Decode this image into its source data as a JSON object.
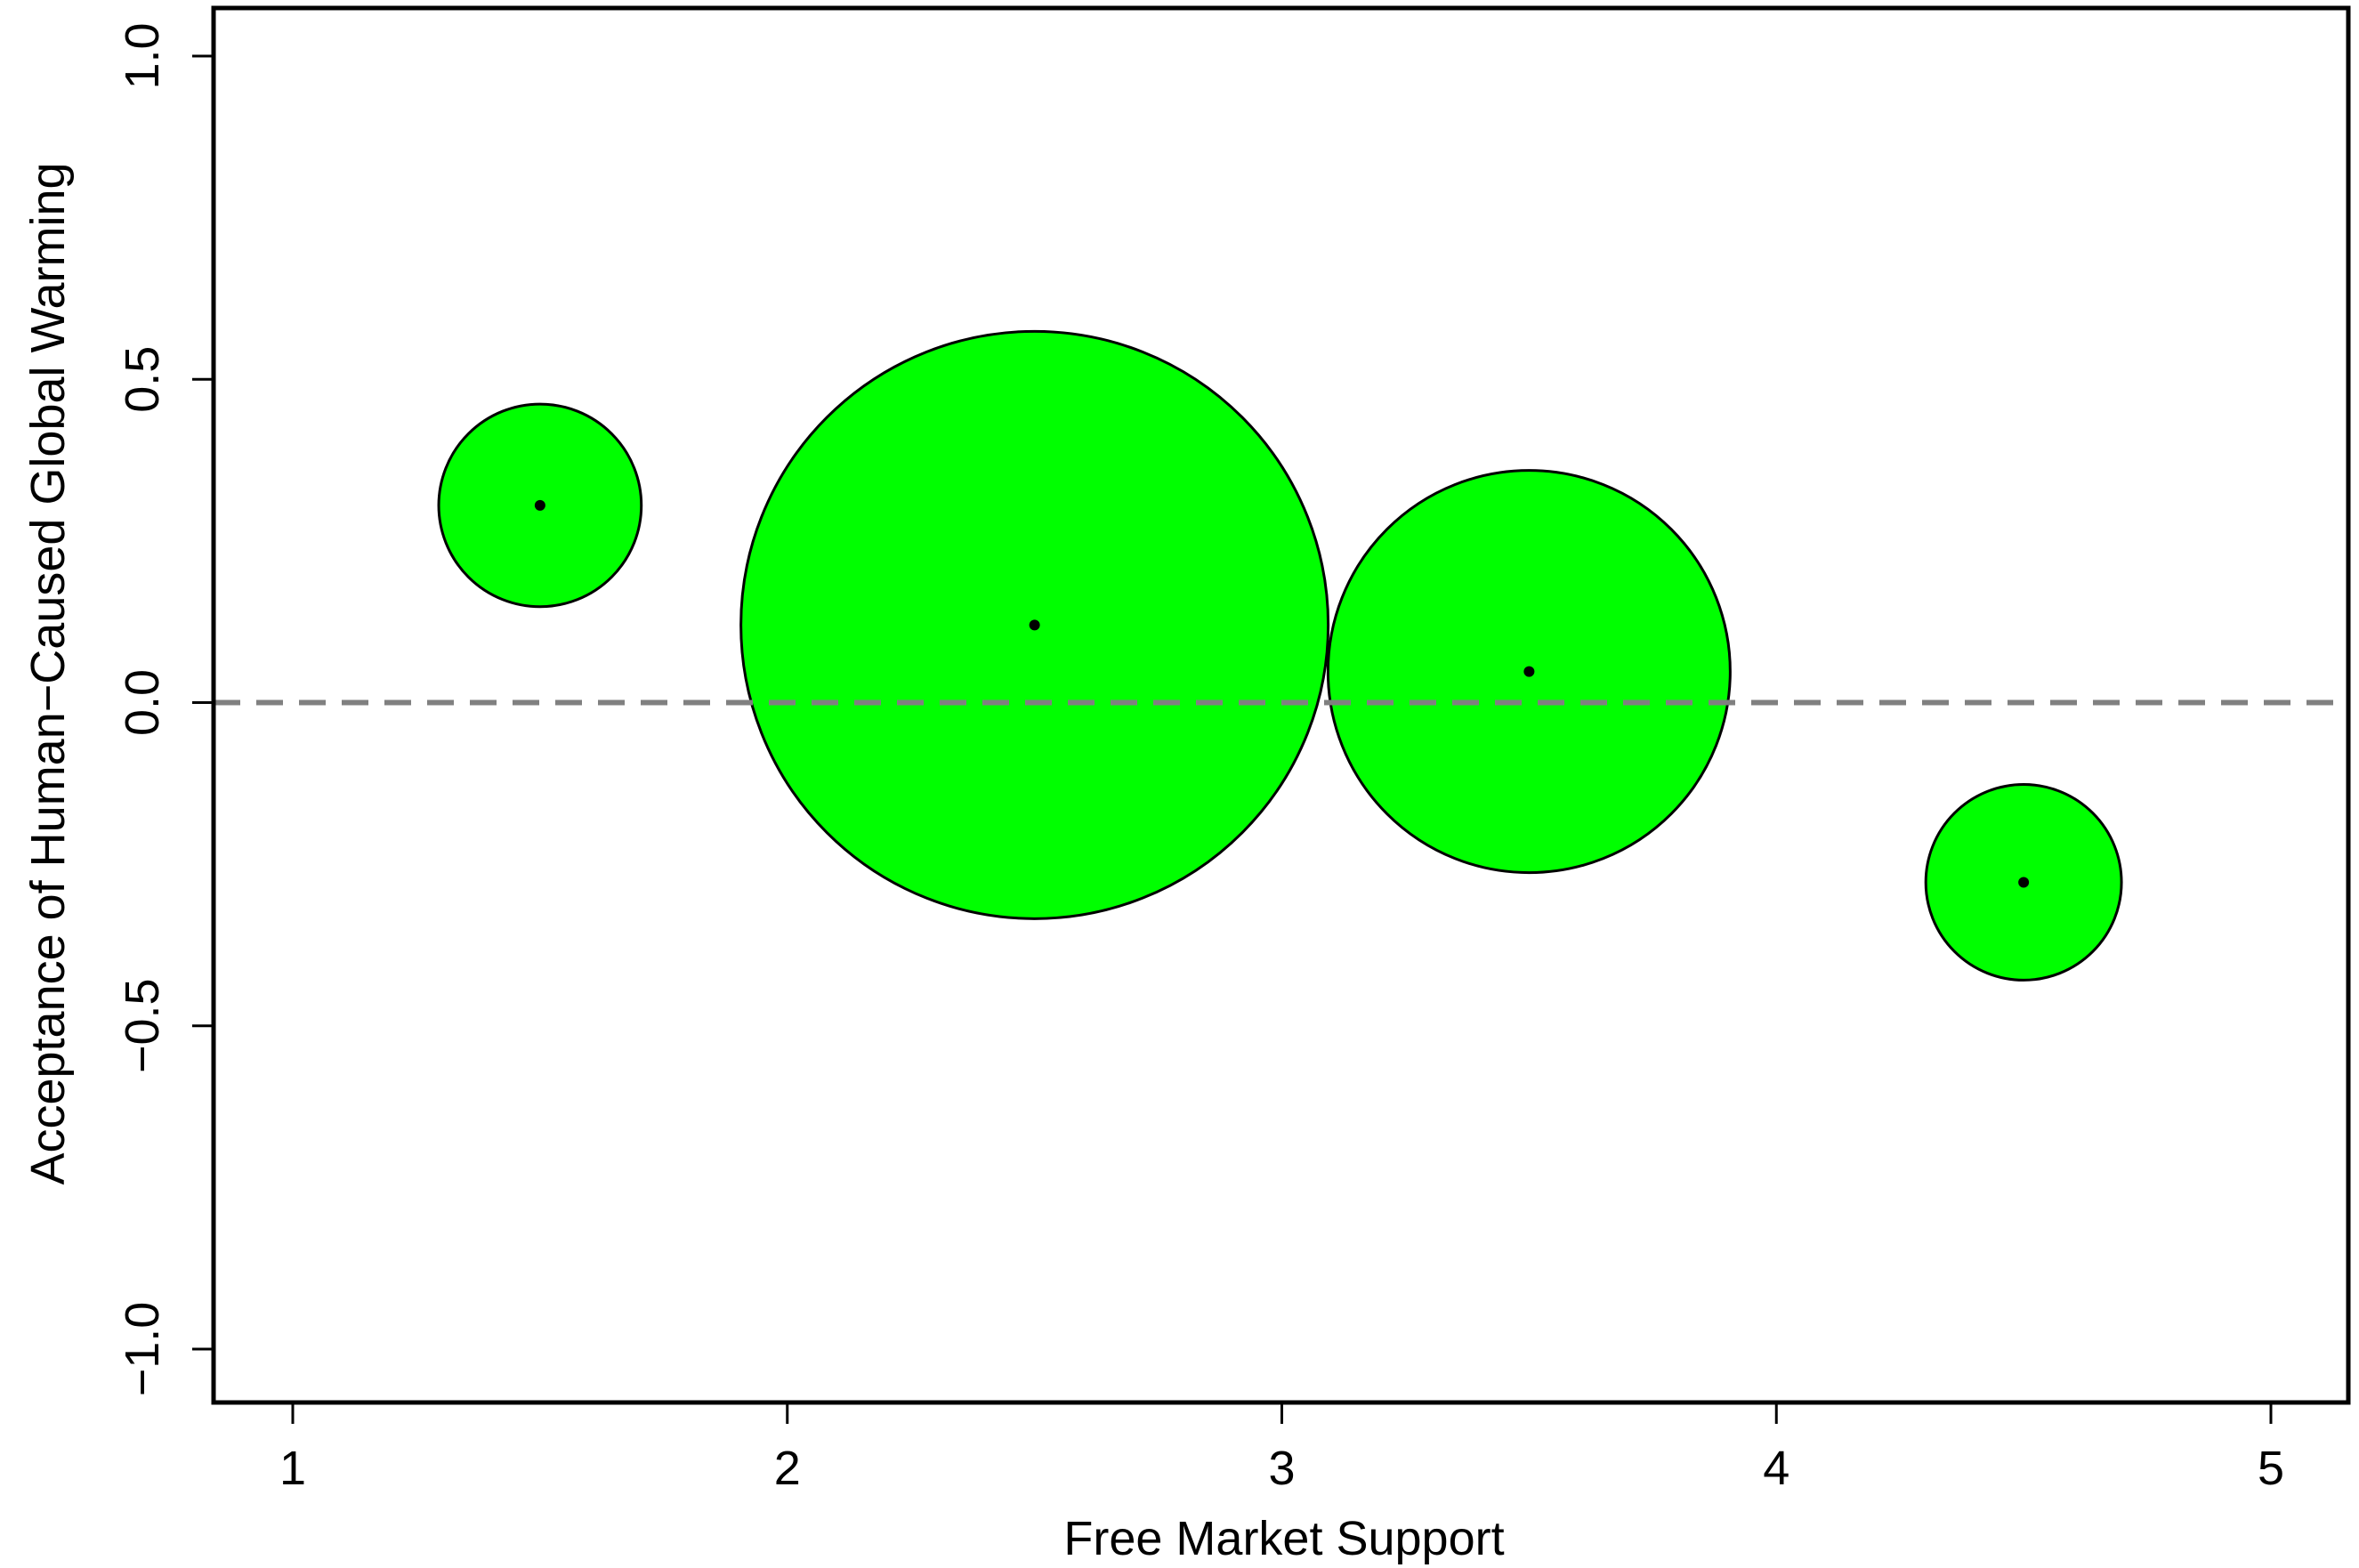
{
  "chart_data": {
    "type": "scatter",
    "title": "",
    "xlabel": "Free Market Support",
    "ylabel": "Acceptance of Human−Caused Global Warming",
    "xlim": [
      0.84,
      5.16
    ],
    "ylim": [
      -1.08,
      1.08
    ],
    "x_ticks": [
      {
        "value": 1,
        "label": "1"
      },
      {
        "value": 2,
        "label": "2"
      },
      {
        "value": 3,
        "label": "3"
      },
      {
        "value": 4,
        "label": "4"
      },
      {
        "value": 5,
        "label": "5"
      }
    ],
    "y_ticks": [
      {
        "value": -1.0,
        "label": "−1.0"
      },
      {
        "value": -0.5,
        "label": "−0.5"
      },
      {
        "value": 0.0,
        "label": "0.0"
      },
      {
        "value": 0.5,
        "label": "0.5"
      },
      {
        "value": 1.0,
        "label": "1.0"
      }
    ],
    "grid": false,
    "reference_line": {
      "y": 0.0,
      "style": "dashed",
      "color": "#808080"
    },
    "bubble_fill": "#00ff00",
    "bubble_stroke": "#000000",
    "center_dot_color": "#000000",
    "points": [
      {
        "x": 1.5,
        "y": 0.305,
        "relative_size": 0.119
      },
      {
        "x": 2.5,
        "y": 0.12,
        "relative_size": 1.0
      },
      {
        "x": 3.5,
        "y": 0.048,
        "relative_size": 0.469
      },
      {
        "x": 4.5,
        "y": -0.278,
        "relative_size": 0.111
      }
    ]
  }
}
